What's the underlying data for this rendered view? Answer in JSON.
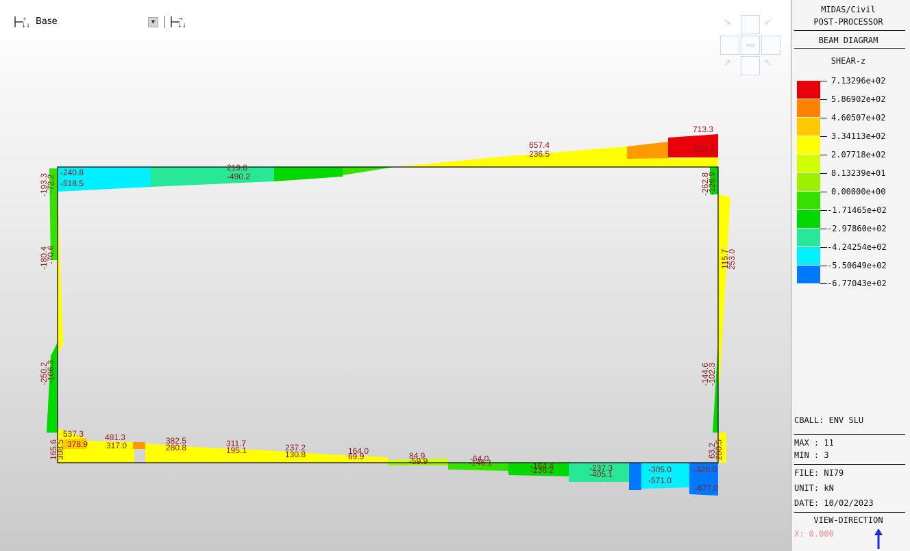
{
  "toolbar": {
    "story_icon": "story-filter-icon",
    "story_value": "Base",
    "dropdown_icon": "dropdown-arrow-icon",
    "story_next_icon": "story-next-icon"
  },
  "view_cube": {
    "face_label": "TOP"
  },
  "legend": {
    "program": "MIDAS/Civil",
    "module": "POST-PROCESSOR",
    "diagram_type": "BEAM DIAGRAM",
    "component": "SHEAR-z",
    "scale": [
      {
        "value": "7.13296e+02",
        "color": "#e8000a"
      },
      {
        "value": "5.86902e+02",
        "color": "#ff8200"
      },
      {
        "value": "4.60507e+02",
        "color": "#ffc800"
      },
      {
        "value": "3.34113e+02",
        "color": "#ffff00"
      },
      {
        "value": "2.07718e+02",
        "color": "#d2ff00"
      },
      {
        "value": "8.13239e+01",
        "color": "#9cf000"
      },
      {
        "value": "0.00000e+00",
        "color": "#36e000"
      },
      {
        "value": "-1.71465e+02",
        "color": "#00d800"
      },
      {
        "value": "-2.97860e+02",
        "color": "#26e896"
      },
      {
        "value": "-4.24254e+02",
        "color": "#00f0ff"
      },
      {
        "value": "-5.50649e+02",
        "color": "#0078ff"
      },
      {
        "value": "-6.77043e+02",
        "color": null
      }
    ],
    "combination": "CBALL: ENV SLU",
    "max": "MAX : 11",
    "min": "MIN : 3",
    "file": "FILE: NI79",
    "unit": "UNIT: kN",
    "date": "DATE: 10/02/2023",
    "view_direction": "VIEW-DIRECTION",
    "x_value": "X: 0.000",
    "axis_icon": "view-direction-arrow-icon"
  },
  "diagram_labels": {
    "top": [
      "713.3",
      "257.6",
      "657.4",
      "236.5",
      "219.8",
      "-490.2",
      "-240.8",
      "-518.5"
    ],
    "left_corner_top": [
      "-193.3",
      "-72.2"
    ],
    "left_mid": [
      "-180.4",
      "-70.6"
    ],
    "left_low": [
      "-250.2",
      "-106.3"
    ],
    "left_bottom": [
      "165.6",
      "308.5"
    ],
    "right_corner_top": [
      "-262.8",
      "-126.9"
    ],
    "right_mid": [
      "115.7",
      "253.0"
    ],
    "right_low": [
      "-144.6",
      "-102.3"
    ],
    "right_bottom": [
      "63.2",
      "200.5"
    ],
    "bottom": [
      "537.3",
      "378.9",
      "481.3",
      "317.0",
      "382.5",
      "280.8",
      "311.7",
      "195.1",
      "237.2",
      "130.8",
      "164.0",
      "69.9",
      "84.9",
      "-59.9",
      "-64.0",
      "-146.1",
      "-164.4",
      "-236.2",
      "-237.3",
      "-405.1",
      "-305.0",
      "-571.0",
      "-320.0",
      "-677.0"
    ]
  }
}
